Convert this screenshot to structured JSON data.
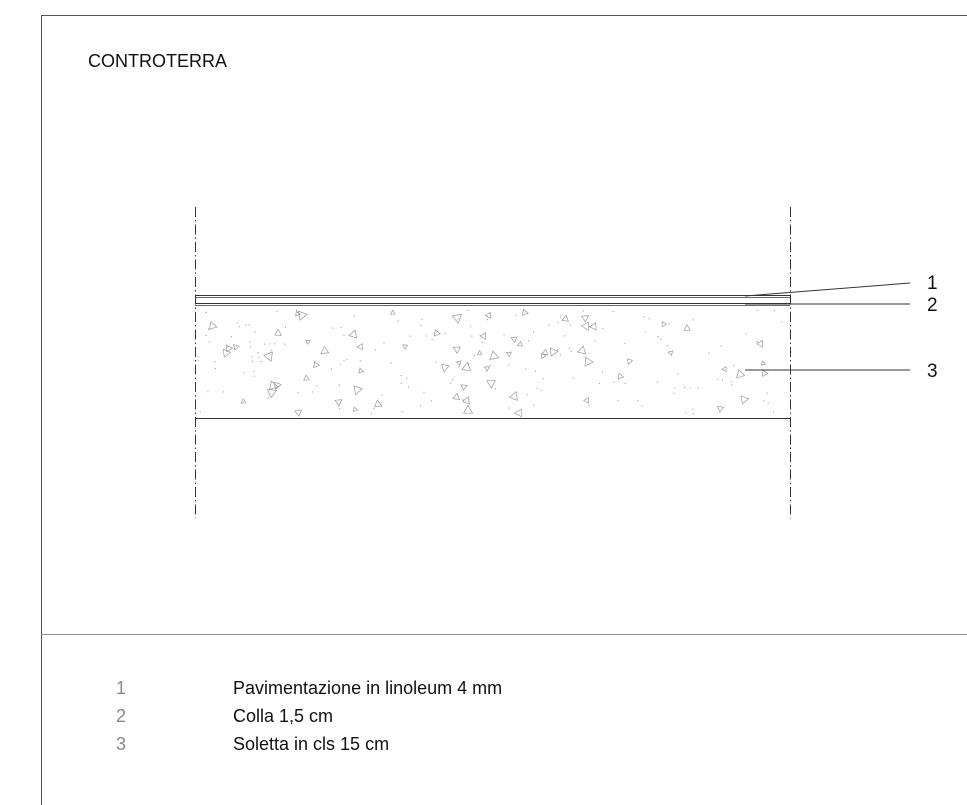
{
  "sheet": {
    "title": "CONTROTERRA"
  },
  "callouts": [
    {
      "number": "1"
    },
    {
      "number": "2"
    },
    {
      "number": "3"
    }
  ],
  "legend": [
    {
      "number": "1",
      "description": "Pavimentazione in linoleum 4 mm"
    },
    {
      "number": "2",
      "description": "Colla 1,5 cm"
    },
    {
      "number": "3",
      "description": "Soletta in cls 15 cm"
    }
  ],
  "colors": {
    "line": "#333333",
    "frame": "#555555",
    "divider": "#8a8a8a",
    "hatch": "#9a9a9a",
    "legend_number": "#8a8a8a"
  }
}
